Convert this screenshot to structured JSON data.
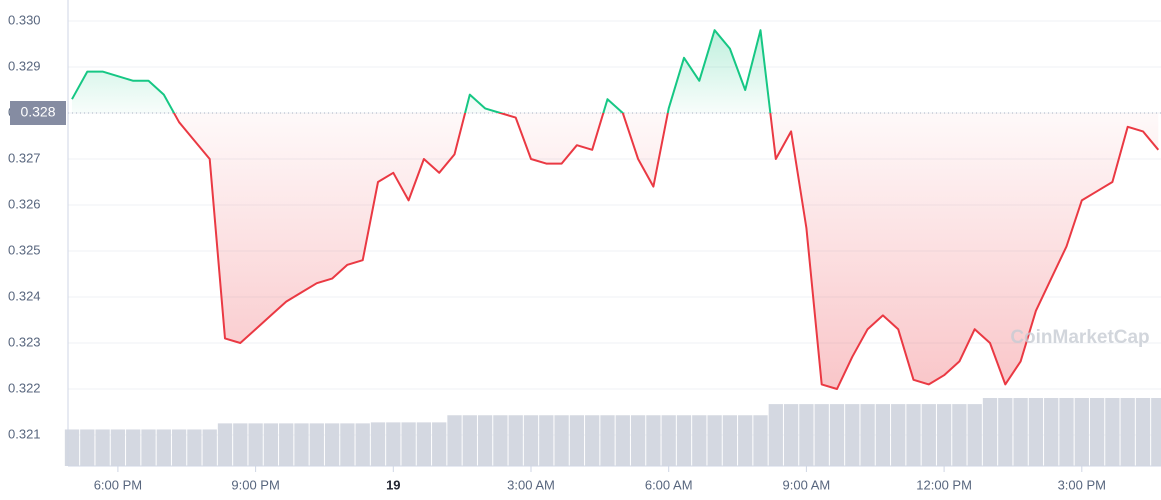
{
  "chart_data": {
    "type": "line",
    "x": [
      "5:00 PM",
      "5:20 PM",
      "5:40 PM",
      "6:00 PM",
      "6:20 PM",
      "6:40 PM",
      "7:00 PM",
      "7:20 PM",
      "7:40 PM",
      "8:00 PM",
      "8:20 PM",
      "8:40 PM",
      "9:00 PM",
      "9:20 PM",
      "9:40 PM",
      "10:00 PM",
      "10:20 PM",
      "10:40 PM",
      "11:00 PM",
      "11:20 PM",
      "11:40 PM",
      "12:00 AM",
      "12:20 AM",
      "12:40 AM",
      "1:00 AM",
      "1:20 AM",
      "1:40 AM",
      "2:00 AM",
      "2:20 AM",
      "2:40 AM",
      "3:00 AM",
      "3:20 AM",
      "3:40 AM",
      "4:00 AM",
      "4:20 AM",
      "4:40 AM",
      "5:00 AM",
      "5:20 AM",
      "5:40 AM",
      "6:00 AM",
      "6:20 AM",
      "6:40 AM",
      "7:00 AM",
      "7:20 AM",
      "7:40 AM",
      "8:00 AM",
      "8:20 AM",
      "8:40 AM",
      "9:00 AM",
      "9:20 AM",
      "9:40 AM",
      "10:00 AM",
      "10:20 AM",
      "10:40 AM",
      "11:00 AM",
      "11:20 AM",
      "11:40 AM",
      "12:00 PM",
      "12:20 PM",
      "12:40 PM",
      "1:00 PM",
      "1:20 PM",
      "1:40 PM",
      "2:00 PM",
      "2:20 PM",
      "2:40 PM",
      "3:00 PM",
      "3:20 PM",
      "3:40 PM",
      "4:00 PM",
      "4:20 PM",
      "4:40 PM"
    ],
    "values": [
      0.3283,
      0.3289,
      0.3289,
      0.3288,
      0.3287,
      0.3287,
      0.3284,
      0.3278,
      0.3274,
      0.327,
      0.3231,
      0.323,
      0.3233,
      0.3236,
      0.3239,
      0.3241,
      0.3243,
      0.3244,
      0.3247,
      0.3248,
      0.3265,
      0.3267,
      0.3261,
      0.327,
      0.3267,
      0.3271,
      0.3284,
      0.3281,
      0.328,
      0.3279,
      0.327,
      0.3269,
      0.3269,
      0.3273,
      0.3272,
      0.3283,
      0.328,
      0.327,
      0.3264,
      0.3281,
      0.3292,
      0.3287,
      0.3298,
      0.3294,
      0.3285,
      0.3298,
      0.327,
      0.3276,
      0.3255,
      0.3221,
      0.322,
      0.3227,
      0.3233,
      0.3236,
      0.3233,
      0.3222,
      0.3221,
      0.3223,
      0.3226,
      0.3233,
      0.323,
      0.3221,
      0.3226,
      0.3237,
      0.3244,
      0.3251,
      0.3261,
      0.3263,
      0.3265,
      0.3277,
      0.3276,
      0.3272
    ],
    "volume": [
      36,
      36,
      36,
      36,
      36,
      36,
      36,
      36,
      36,
      36,
      42,
      42,
      42,
      42,
      42,
      42,
      42,
      42,
      42,
      42,
      43,
      43,
      43,
      43,
      43,
      50,
      50,
      50,
      50,
      50,
      50,
      50,
      50,
      50,
      50,
      50,
      50,
      50,
      50,
      50,
      50,
      50,
      50,
      50,
      50,
      50,
      61,
      61,
      61,
      61,
      61,
      61,
      61,
      61,
      61,
      61,
      61,
      61,
      61,
      61,
      67,
      67,
      67,
      67,
      67,
      67,
      67,
      67,
      67,
      67,
      67,
      67
    ],
    "baseline": 0.328,
    "up_color": "#16c784",
    "down_color": "#ea3943",
    "volume_color": "#d4d8e1",
    "ylim": [
      0.3206,
      0.3304
    ],
    "yticks": [
      0.321,
      0.322,
      0.323,
      0.324,
      0.325,
      0.326,
      0.327,
      0.328,
      0.329,
      {
        "value": 0.33,
        "label": "0.330"
      }
    ],
    "xticks": [
      {
        "value": "6:00 PM",
        "label": "6:00 PM"
      },
      {
        "value": "9:00 PM",
        "label": "9:00 PM"
      },
      {
        "value": "12:00 AM",
        "label": "19"
      },
      {
        "value": "3:00 AM",
        "label": "3:00 AM"
      },
      {
        "value": "6:00 AM",
        "label": "6:00 AM"
      },
      {
        "value": "9:00 AM",
        "label": "9:00 AM"
      },
      {
        "value": "12:00 PM",
        "label": "12:00 PM"
      },
      {
        "value": "3:00 PM",
        "label": "3:00 PM"
      }
    ],
    "grid": true,
    "watermark": "CoinMarketCap"
  }
}
